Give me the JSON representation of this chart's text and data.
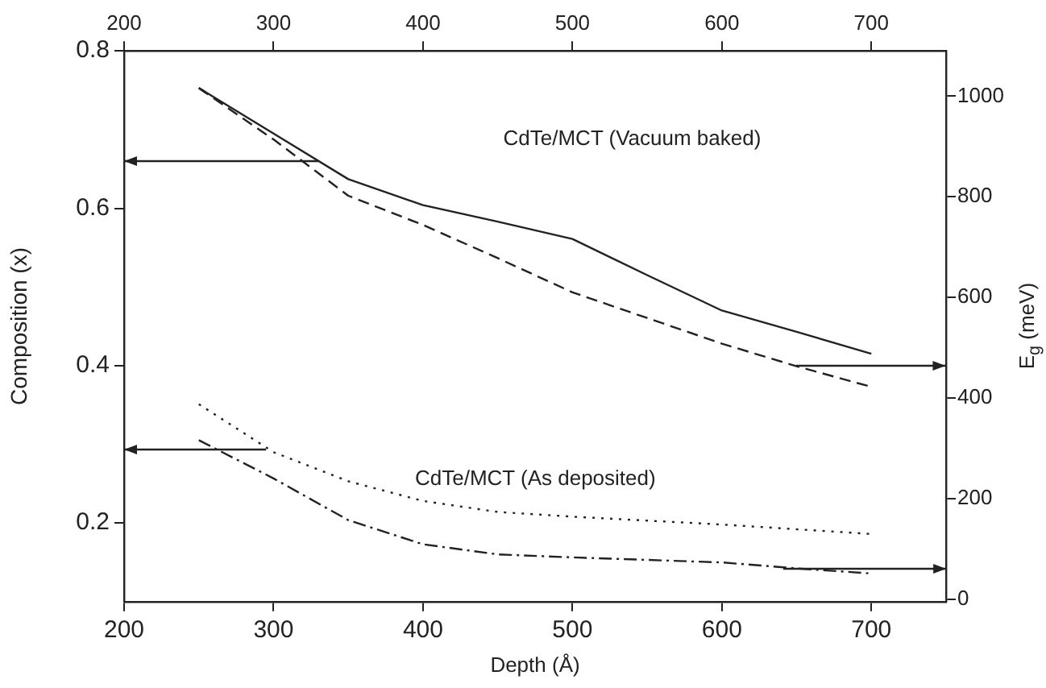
{
  "chart_data": {
    "type": "line",
    "xlabel": "Depth (Å)",
    "ylabel": "Composition (x)",
    "y2label": "E$_{g}$ (meV)",
    "annotations": [
      "CdTe/MCT (Vacuum baked)",
      "CdTe/MCT (As deposited)"
    ],
    "x": [
      250,
      300,
      350,
      400,
      450,
      500,
      550,
      600,
      650,
      700
    ],
    "series": [
      {
        "color": "#222222",
        "line_style": "solid",
        "values": [
          0.753,
          0.695,
          0.637,
          0.604,
          0.583,
          0.561,
          0.515,
          0.47,
          0.443,
          0.415
        ]
      },
      {
        "color": "#222222",
        "line_style": "dashed",
        "axis": "y2",
        "values": [
          1016,
          914,
          802,
          744,
          678,
          610,
          559,
          508,
          463,
          422
        ]
      },
      {
        "color": "#222222",
        "line_style": "dotted",
        "values": [
          0.351,
          0.29,
          0.253,
          0.228,
          0.214,
          0.208,
          0.203,
          0.198,
          0.192,
          0.186
        ]
      },
      {
        "color": "#222222",
        "line_style": "dashdot",
        "axis": "y2",
        "values": [
          316,
          240,
          157,
          109,
          89,
          83,
          78,
          73,
          61,
          51
        ]
      }
    ],
    "xlim": [
      200,
      750
    ],
    "xticks": [
      200,
      300,
      400,
      500,
      600,
      700
    ],
    "x2lim": [
      200,
      750
    ],
    "x2ticks": [
      200,
      300,
      400,
      500,
      600,
      700
    ],
    "ylim": [
      0.1,
      0.8
    ],
    "yticks": [
      0.2,
      0.4,
      0.6,
      0.8
    ],
    "y2lim": [
      -5,
      1090
    ],
    "y2ticks": [
      0,
      200,
      400,
      600,
      800,
      1000
    ],
    "grid": false,
    "legend": false,
    "marker": "none"
  }
}
